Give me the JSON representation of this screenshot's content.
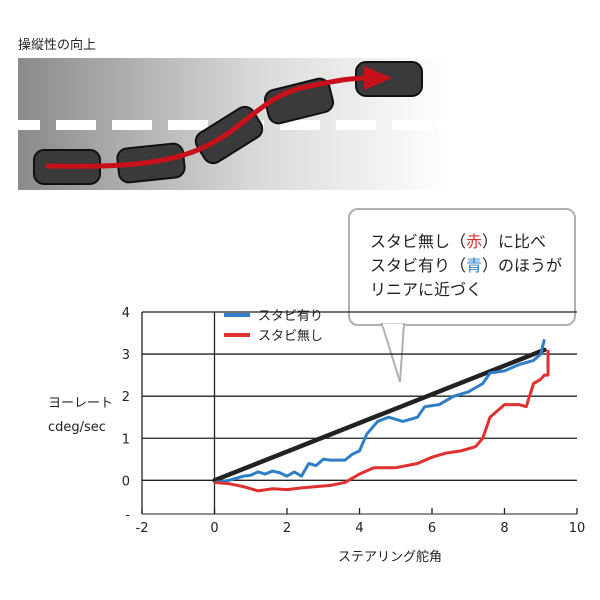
{
  "heading": "操縦性の向上",
  "callout": {
    "line1_a": "スタビ無し（",
    "line1_red": "赤",
    "line1_b": "）に比べ",
    "line2_a": "スタビ有り（",
    "line2_blue": "青",
    "line2_b": "）のほうが",
    "line3": "リニアに近づく"
  },
  "colors": {
    "with_stabilizer": "#2f7fc8",
    "without_stabilizer": "#e03030",
    "linear_reference": "#222222",
    "grid": "#222222"
  },
  "chart_data": {
    "type": "line",
    "xlabel": "ステアリング舵角",
    "ylabel": [
      "ヨーレート",
      "cdeg/sec"
    ],
    "xlim": [
      -2,
      10
    ],
    "ylim": [
      -0.8,
      4
    ],
    "xticks": [
      "-2",
      "0",
      "2",
      "4",
      "6",
      "8",
      "10"
    ],
    "yticks": [
      "-",
      "0",
      "1",
      "2",
      "3",
      "4"
    ],
    "grid": "horizontal",
    "legend_position": "top-left",
    "series": [
      {
        "name": "スタビ有り",
        "x": [
          0,
          0.4,
          0.8,
          1.0,
          1.2,
          1.4,
          1.6,
          1.8,
          2.0,
          2.2,
          2.4,
          2.6,
          2.8,
          3.0,
          3.2,
          3.6,
          3.8,
          4.0,
          4.2,
          4.5,
          4.8,
          5.2,
          5.6,
          5.8,
          6.2,
          6.6,
          7.0,
          7.2,
          7.4,
          7.6,
          8.0,
          8.4,
          8.8,
          9.0,
          9.1
        ],
        "y": [
          -0.05,
          0.0,
          0.1,
          0.12,
          0.2,
          0.15,
          0.22,
          0.18,
          0.1,
          0.2,
          0.1,
          0.4,
          0.35,
          0.5,
          0.48,
          0.48,
          0.62,
          0.7,
          1.1,
          1.4,
          1.5,
          1.4,
          1.5,
          1.75,
          1.8,
          2.0,
          2.1,
          2.2,
          2.3,
          2.55,
          2.6,
          2.75,
          2.85,
          3.0,
          3.35
        ]
      },
      {
        "name": "スタビ無し",
        "x": [
          0,
          0.4,
          0.8,
          1.2,
          1.6,
          2.0,
          2.4,
          2.8,
          3.2,
          3.6,
          4.0,
          4.4,
          5.0,
          5.6,
          6.0,
          6.4,
          6.8,
          7.2,
          7.4,
          7.6,
          8.0,
          8.4,
          8.6,
          8.8,
          9.0,
          9.1,
          9.2,
          9.2
        ],
        "y": [
          -0.05,
          -0.08,
          -0.15,
          -0.25,
          -0.2,
          -0.22,
          -0.18,
          -0.15,
          -0.12,
          -0.05,
          0.15,
          0.3,
          0.3,
          0.4,
          0.55,
          0.65,
          0.7,
          0.8,
          1.0,
          1.5,
          1.8,
          1.8,
          1.75,
          2.3,
          2.4,
          2.5,
          2.5,
          3.1
        ]
      }
    ],
    "reference_line": {
      "x": [
        0,
        9.1
      ],
      "y": [
        0,
        3.1
      ]
    }
  }
}
